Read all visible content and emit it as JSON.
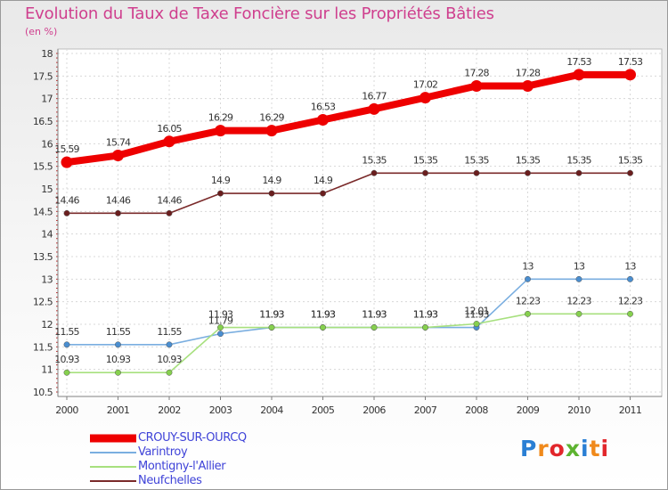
{
  "title": "Evolution du Taux de Taxe Foncière sur les Propriétés Bâties",
  "unit_label": "(en %)",
  "brand": {
    "text": "Proxiti",
    "colors": [
      "#2a7fd4",
      "#f08a1c",
      "#e2262b",
      "#5db330",
      "#2a7fd4",
      "#f08a1c",
      "#e2262b"
    ]
  },
  "chart_data": {
    "type": "line",
    "title": "Evolution du Taux de Taxe Foncière sur les Propriétés Bâties",
    "ylabel": "(en %)",
    "xlabel": "",
    "ylim": [
      10.5,
      18
    ],
    "yticks": [
      "10.5",
      "11",
      "11.5",
      "12",
      "12.5",
      "13",
      "13.5",
      "14",
      "14.5",
      "15",
      "15.5",
      "16",
      "16.5",
      "17",
      "17.5",
      "18"
    ],
    "x": [
      "2000",
      "2001",
      "2002",
      "2003",
      "2004",
      "2005",
      "2006",
      "2007",
      "2008",
      "2009",
      "2010",
      "2011"
    ],
    "legend_position": "bottom-left",
    "series": [
      {
        "name": "CROUY-SUR-OURCQ",
        "color": "#ee0000",
        "marker": "#ee0000",
        "style": "thick",
        "values": [
          15.59,
          15.74,
          16.05,
          16.29,
          16.29,
          16.53,
          16.77,
          17.02,
          17.28,
          17.28,
          17.53,
          17.53
        ],
        "labels": [
          "15.59",
          "15.74",
          "16.05",
          "16.29",
          "16.29",
          "16.53",
          "16.77",
          "17.02",
          "17.28",
          "17.28",
          "17.53",
          "17.53"
        ]
      },
      {
        "name": "Varintroy",
        "color": "#7aaee0",
        "marker": "#4a8ed0",
        "style": "thin",
        "values": [
          11.55,
          11.55,
          11.55,
          11.79,
          11.93,
          11.93,
          11.93,
          11.93,
          11.93,
          13,
          13,
          13
        ],
        "labels": [
          "11.55",
          "11.55",
          "11.55",
          "11.79",
          "11.93",
          "11.93",
          "11.93",
          "11.93",
          "11.93",
          "13",
          "13",
          "13"
        ]
      },
      {
        "name": "Montigny-l'Allier",
        "color": "#a7e07e",
        "marker": "#86d04e",
        "style": "thin",
        "values": [
          10.93,
          10.93,
          10.93,
          11.93,
          11.93,
          11.93,
          11.93,
          11.93,
          12.01,
          12.23,
          12.23,
          12.23
        ],
        "labels": [
          "10.93",
          "10.93",
          "10.93",
          "11.93",
          "11.93",
          "11.93",
          "11.93",
          "11.93",
          "12.01",
          "12.23",
          "12.23",
          "12.23"
        ]
      },
      {
        "name": "Neufchelles",
        "color": "#7a2a2a",
        "marker": "#6a1e1e",
        "style": "thin",
        "values": [
          14.46,
          14.46,
          14.46,
          14.9,
          14.9,
          14.9,
          15.35,
          15.35,
          15.35,
          15.35,
          15.35,
          15.35
        ],
        "labels": [
          "14.46",
          "14.46",
          "14.46",
          "14.9",
          "14.9",
          "14.9",
          "15.35",
          "15.35",
          "15.35",
          "15.35",
          "15.35",
          "15.35"
        ]
      }
    ]
  }
}
